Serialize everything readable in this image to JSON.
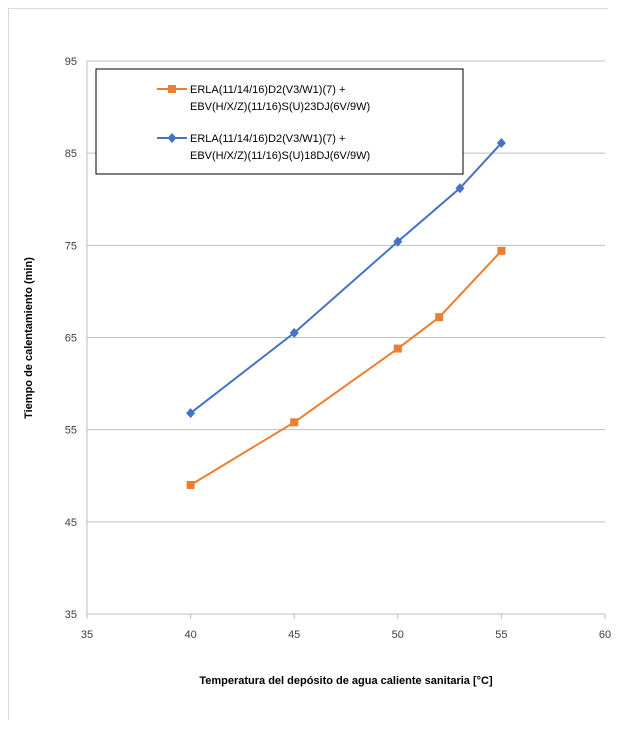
{
  "chart_data": {
    "type": "line",
    "title": "",
    "xlabel": "Temperatura del depósito de agua caliente sanitaria [°C]",
    "ylabel": "Tiempo de calentamiento (min)",
    "xlim": [
      35,
      60
    ],
    "ylim": [
      35,
      95
    ],
    "xticks": [
      35,
      40,
      45,
      50,
      55,
      60
    ],
    "yticks": [
      35,
      45,
      55,
      65,
      75,
      85,
      95
    ],
    "grid": true,
    "legend_position": "top-left",
    "series": [
      {
        "name_lines": [
          "ERLA(11/14/16)D2(V3/W1)(7) +",
          "EBV(H/X/Z)(11/16)S(U)23DJ(6V/9W)"
        ],
        "color": "#ED7D31",
        "marker": "square",
        "points": [
          [
            40,
            49
          ],
          [
            45,
            55.8
          ],
          [
            50,
            63.8
          ],
          [
            52,
            67.2
          ],
          [
            55,
            74.4
          ]
        ]
      },
      {
        "name_lines": [
          "ERLA(11/14/16)D2(V3/W1)(7) +",
          "EBV(H/X/Z)(11/16)S(U)18DJ(6V/9W)"
        ],
        "color": "#4472C4",
        "marker": "diamond",
        "points": [
          [
            40,
            56.8
          ],
          [
            45,
            65.5
          ],
          [
            50,
            75.4
          ],
          [
            53,
            81.2
          ],
          [
            55,
            86.1
          ]
        ]
      }
    ]
  }
}
